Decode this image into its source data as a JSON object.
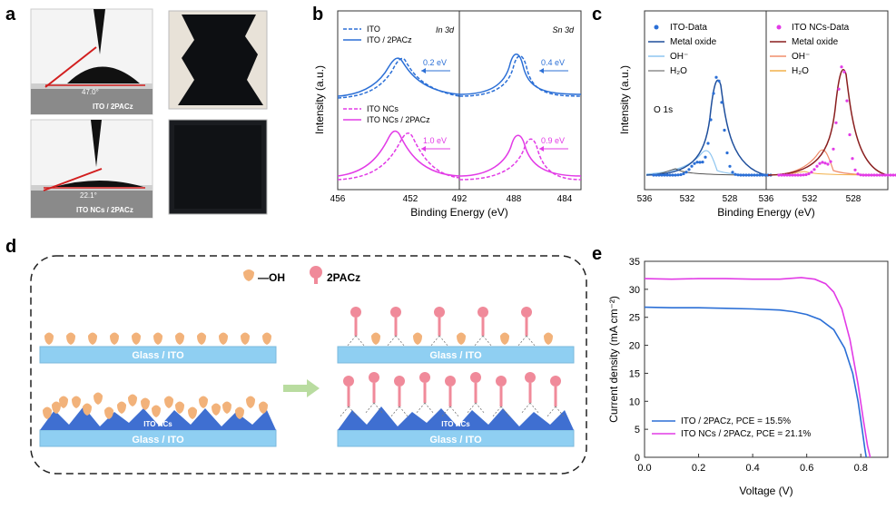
{
  "panel_labels": {
    "a": "a",
    "b": "b",
    "c": "c",
    "d": "d",
    "e": "e"
  },
  "colors": {
    "blue": "#2b6fd6",
    "magenta": "#e23be6",
    "dark_blue": "#1f4f9c",
    "dark_red": "#8a1f1f",
    "light_blue": "#8ec5f0",
    "salmon": "#f08d6b",
    "orange": "#f2b04a",
    "glass": "#8fcff2",
    "nc": "#3f6fd1",
    "oh": "#f2b27a",
    "pacz": "#f08a9a",
    "arrow": "#b9dca0"
  },
  "panel_a": {
    "label_top": "ITO / 2PACz",
    "angle_top": "47.0°",
    "label_bottom": "ITO NCs / 2PACz",
    "angle_bottom": "22.1°"
  },
  "panel_b": {
    "ylabel": "Intensity (a.u.)",
    "xlabel": "Binding Energy (eV)",
    "left_title": "In 3d",
    "right_title": "Sn 3d",
    "legend_top": [
      "ITO",
      "ITO / 2PACz"
    ],
    "legend_bottom": [
      "ITO NCs",
      "ITO NCs / 2PACz"
    ],
    "shifts": {
      "in_top": "0.2 eV",
      "sn_top": "0.4 eV",
      "in_bottom": "1.0 eV",
      "sn_bottom": "0.9 eV"
    },
    "ticks_left": [
      "456",
      "452"
    ],
    "ticks_right": [
      "492",
      "488",
      "484"
    ]
  },
  "panel_c": {
    "ylabel": "Intensity (a.u.)",
    "xlabel": "Binding Energy (eV)",
    "o_label": "O 1s",
    "legend_left": [
      "ITO-Data",
      "Metal oxide",
      "OH⁻",
      "H₂O"
    ],
    "legend_right": [
      "ITO NCs-Data",
      "Metal oxide",
      "OH⁻",
      "H₂O"
    ],
    "ticks_left": [
      "536",
      "532",
      "528"
    ],
    "ticks_right": [
      "536",
      "532",
      "528"
    ]
  },
  "panel_d": {
    "legend_oh": "—OH",
    "legend_pacz": "2PACz",
    "glass_ito": "Glass / ITO",
    "ito_ncs": "ITO NCs"
  },
  "chart_data": {
    "type": "line",
    "title": "",
    "xlabel": "Voltage (V)",
    "ylabel": "Current density (mA cm⁻²)",
    "xlim": [
      0,
      0.9
    ],
    "ylim": [
      0,
      35
    ],
    "xticks": [
      "0.0",
      "0.2",
      "0.4",
      "0.6",
      "0.8"
    ],
    "yticks": [
      "0",
      "5",
      "10",
      "15",
      "20",
      "25",
      "30",
      "35"
    ],
    "series": [
      {
        "name": "ITO / 2PACz,  PCE = 15.5%",
        "color": "#2b6fd6",
        "x": [
          0,
          0.1,
          0.2,
          0.3,
          0.4,
          0.5,
          0.55,
          0.6,
          0.65,
          0.7,
          0.74,
          0.77,
          0.79,
          0.805,
          0.815,
          0.82
        ],
        "y": [
          26.8,
          26.7,
          26.7,
          26.6,
          26.5,
          26.3,
          26.0,
          25.5,
          24.6,
          22.8,
          19.5,
          15.0,
          10.0,
          5.0,
          1.5,
          0
        ]
      },
      {
        "name": "ITO NCs / 2PACz,  PCE = 21.1%",
        "color": "#e23be6",
        "x": [
          0,
          0.1,
          0.2,
          0.3,
          0.4,
          0.5,
          0.58,
          0.63,
          0.67,
          0.7,
          0.73,
          0.76,
          0.79,
          0.81,
          0.825,
          0.835
        ],
        "y": [
          31.9,
          31.8,
          31.9,
          31.9,
          31.8,
          31.8,
          32.1,
          31.8,
          31.0,
          29.5,
          26.5,
          21.0,
          13.0,
          6.5,
          2.0,
          0
        ]
      }
    ],
    "legend": "bottom-left"
  }
}
